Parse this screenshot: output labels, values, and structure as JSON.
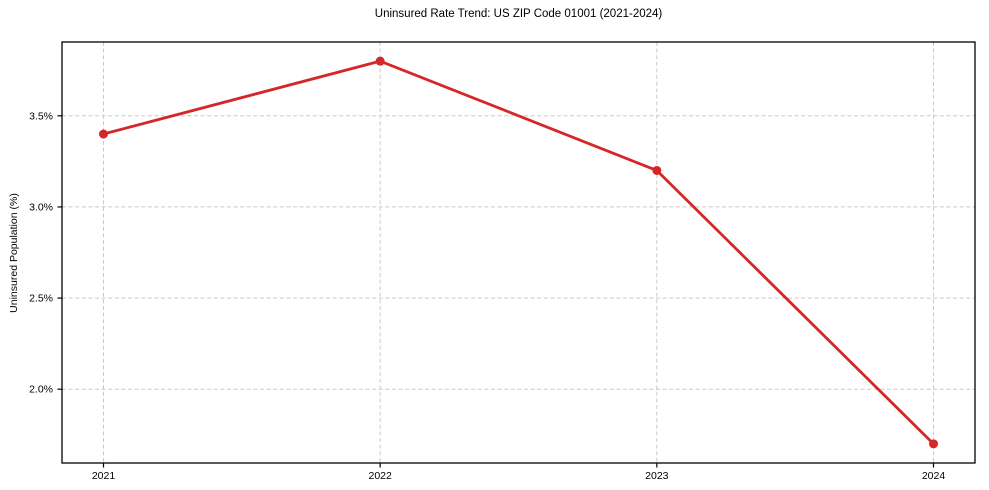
{
  "figure": {
    "background": "#ffffff"
  },
  "chart_data": {
    "type": "line",
    "title": "Uninsured Rate Trend: US ZIP Code 01001 (2021-2024)",
    "xlabel": "",
    "ylabel": "Uninsured Population (%)",
    "x": [
      2021,
      2022,
      2023,
      2024
    ],
    "values": [
      3.4,
      3.8,
      3.2,
      1.7
    ],
    "xlim": [
      2020.85,
      2024.15
    ],
    "ylim": [
      1.595,
      3.905
    ],
    "xticks": {
      "values": [
        2021,
        2022,
        2023,
        2024
      ],
      "labels": [
        "2021",
        "2022",
        "2023",
        "2024"
      ]
    },
    "yticks": {
      "values": [
        2.0,
        2.5,
        3.0,
        3.5
      ],
      "labels": [
        "2.0%",
        "2.5%",
        "3.0%",
        "3.5%"
      ]
    },
    "grid": "dashed",
    "legend": "none",
    "line_color": "#d62728",
    "marker": "circle",
    "marker_radius": 4.5,
    "grid_color": "#c9c9c9",
    "spine_color": "#000000"
  }
}
